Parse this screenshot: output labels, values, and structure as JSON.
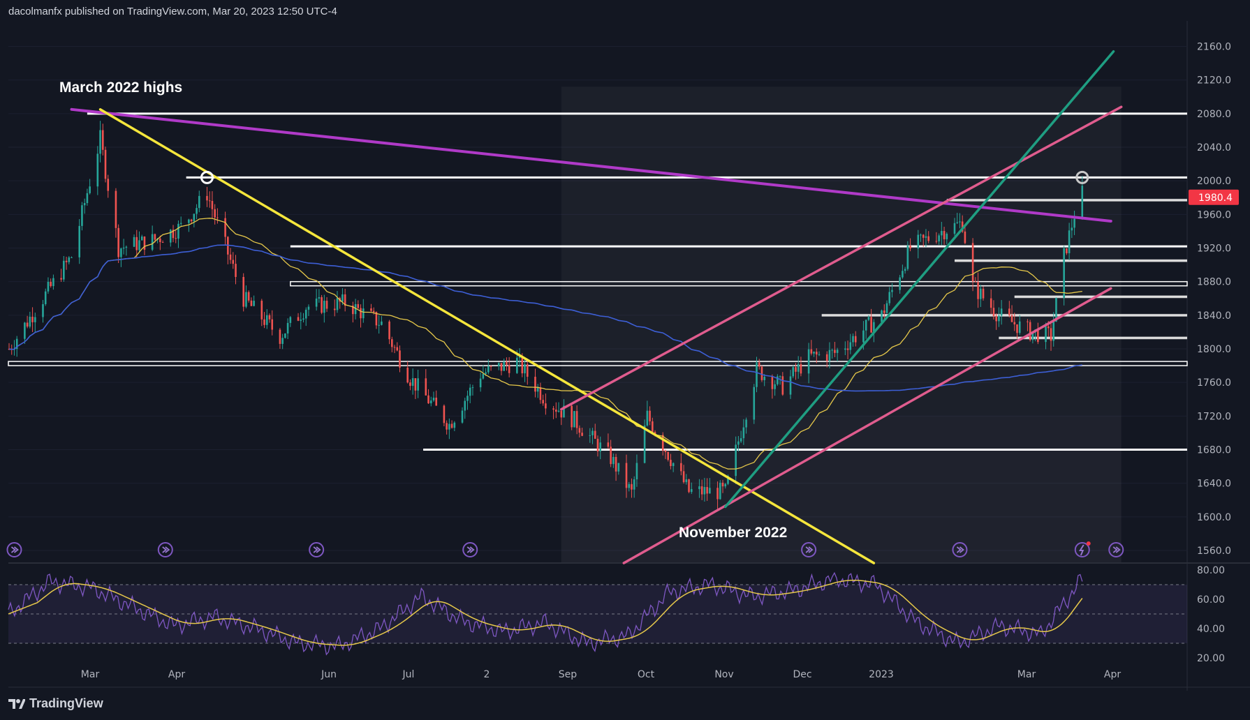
{
  "header": {
    "publisher_line": "dacolmanfx published on TradingView.com, Mar 20, 2023 12:50 UTC-4"
  },
  "footer": {
    "brand": "TradingView"
  },
  "annotations": {
    "march_highs": "March 2022 highs",
    "november": "November 2022"
  },
  "price_tag": {
    "value": "1980.4",
    "color": "#f23645"
  },
  "colors": {
    "background": "#131722",
    "up_candle": "#26a69a",
    "down_candle": "#ef5350",
    "ma_short": "#e6c84a",
    "ma_long": "#3d5fd6",
    "trend_purple": "#b03ac8",
    "trend_yellow": "#f5e63c",
    "channel_pink": "#e05c8e",
    "trend_teal": "#1f9e82",
    "rsi_line": "#7e57c2",
    "rsi_signal": "#e6c84a"
  },
  "icons": {
    "event_marker": "lightning-bolt-circle-icon"
  },
  "chart_data": [
    {
      "type": "candlestick",
      "title": "",
      "y_ticks": [
        "2160.0",
        "2120.0",
        "2080.0",
        "2040.0",
        "2000.0",
        "1960.0",
        "1920.0",
        "1880.0",
        "1840.0",
        "1800.0",
        "1760.0",
        "1720.0",
        "1680.0",
        "1640.0",
        "1600.0",
        "1560.0"
      ],
      "x_ticks": [
        "Mar",
        "Apr",
        "Jun",
        "Jul",
        "2",
        "Sep",
        "Oct",
        "Nov",
        "Dec",
        "2023",
        "Mar",
        "Apr"
      ],
      "ylim": [
        1545,
        2180
      ],
      "last_price": 1980.4,
      "horizontal_levels": [
        2080,
        2004,
        1977,
        1922,
        1905,
        1880,
        1875,
        1862,
        1840,
        1813,
        1785,
        1780,
        1680
      ],
      "trendlines": [
        {
          "name": "descending resistance",
          "from": [
            "2022-02-25",
            2085
          ],
          "to": [
            "2023-03-31",
            1952
          ]
        },
        {
          "name": "descending trendline",
          "from": [
            "2022-03-08",
            2085
          ],
          "to": [
            "2022-12-30",
            1545
          ]
        },
        {
          "name": "upper channel",
          "from": [
            "2022-09-01",
            1728
          ],
          "to": [
            "2023-04-04",
            2088
          ]
        },
        {
          "name": "lower channel",
          "from": [
            "2022-09-25",
            1545
          ],
          "to": [
            "2023-03-31",
            1872
          ]
        },
        {
          "name": "ascending trendline",
          "from": [
            "2022-11-03",
            1612
          ],
          "to": [
            "2023-04-01",
            2154
          ]
        }
      ],
      "moving_averages": [
        "short",
        "long"
      ],
      "key_points": [
        {
          "date": "2022-03-08",
          "high": 2070,
          "label": "March 2022 highs"
        },
        {
          "date": "2022-04-18",
          "high": 1998
        },
        {
          "date": "2022-09-28",
          "low": 1622
        },
        {
          "date": "2022-11-03",
          "low": 1616,
          "label": "November 2022"
        },
        {
          "date": "2023-02-02",
          "high": 1960
        },
        {
          "date": "2023-02-28",
          "low": 1805
        },
        {
          "date": "2023-03-20",
          "high": 2009,
          "close": 1980.4
        }
      ]
    },
    {
      "type": "line",
      "title": "",
      "y_ticks": [
        "80.00",
        "60.00",
        "40.00",
        "20.00"
      ],
      "ylim": [
        18,
        82
      ],
      "bands": [
        70,
        50,
        30
      ],
      "series": [
        {
          "values": [
            50,
            72,
            68,
            55,
            42,
            48,
            40,
            30,
            28,
            40,
            62,
            45,
            38,
            44,
            30,
            35,
            65,
            70,
            62,
            66,
            74,
            70,
            44,
            30,
            42,
            36,
            74
          ]
        }
      ]
    }
  ]
}
